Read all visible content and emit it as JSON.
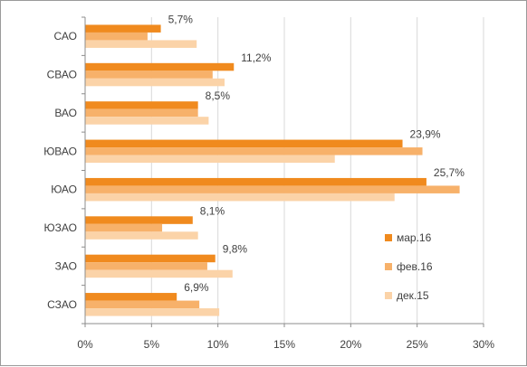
{
  "chart_data": {
    "type": "bar",
    "orientation": "horizontal",
    "categories": [
      "САО",
      "СВАО",
      "ВАО",
      "ЮВАО",
      "ЮАО",
      "ЮЗАО",
      "ЗАО",
      "СЗАО"
    ],
    "series": [
      {
        "name": "мар.16",
        "color": "#f08a1e",
        "values": [
          5.7,
          11.2,
          8.5,
          23.9,
          25.7,
          8.1,
          9.8,
          6.9
        ]
      },
      {
        "name": "фев.16",
        "color": "#f7b16a",
        "values": [
          4.7,
          9.6,
          8.5,
          25.4,
          28.2,
          5.8,
          9.2,
          8.6
        ]
      },
      {
        "name": "дек.15",
        "color": "#fbd3a8",
        "values": [
          8.4,
          10.5,
          9.3,
          18.8,
          23.3,
          8.5,
          11.1,
          10.1
        ]
      }
    ],
    "data_labels": [
      "5,7%",
      "11,2%",
      "8,5%",
      "23,9%",
      "25,7%",
      "8,1%",
      "9,8%",
      "6,9%"
    ],
    "x_ticks": [
      "0%",
      "5%",
      "10%",
      "15%",
      "20%",
      "25%",
      "30%"
    ],
    "xlim": [
      0,
      30
    ],
    "title": "",
    "xlabel": "",
    "ylabel": "",
    "grid": "vertical",
    "legend_position": "right"
  }
}
